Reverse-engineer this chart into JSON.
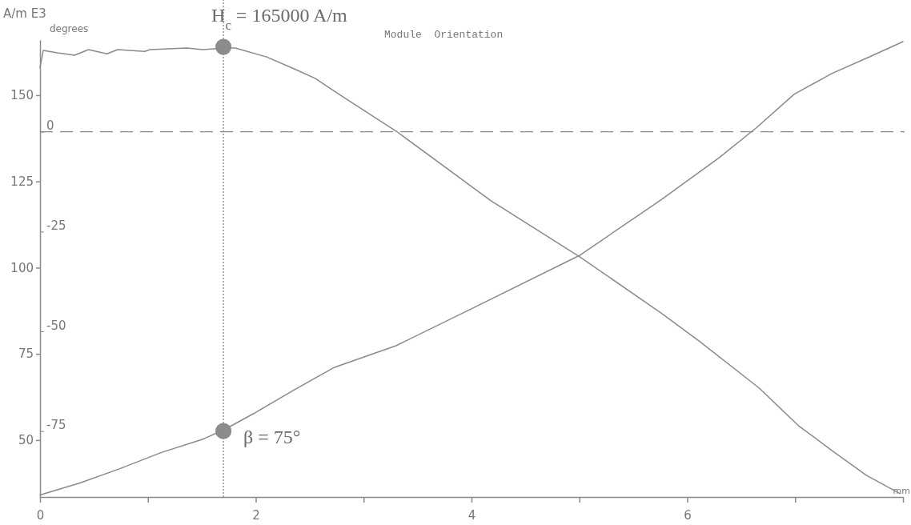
{
  "chart_data": {
    "type": "line",
    "title": "Module  Orientation",
    "ylabel": "A/m E3",
    "y2label": "degrees",
    "xlabel": "mm",
    "xlim": [
      0,
      8
    ],
    "xticks": [
      0,
      {
        "value": 1,
        "label": null
      },
      2,
      {
        "value": 3,
        "label": null
      },
      4,
      {
        "value": 5,
        "label": null
      },
      6,
      {
        "value": 7,
        "label": null
      },
      {
        "value": 8,
        "label": null
      }
    ],
    "ylim": [
      33.5,
      166
    ],
    "yticks": [
      50,
      75,
      100,
      125,
      150
    ],
    "y2lim": [
      -91.5,
      23
    ],
    "y2ticks": [
      0,
      -25,
      -50,
      -75
    ],
    "series": [
      {
        "color": "#8a8a8a",
        "x": [
          0,
          0.03,
          0.16,
          0.32,
          0.45,
          0.62,
          0.72,
          0.97,
          1.02,
          1.36,
          1.51,
          1.71,
          1.81,
          2.1,
          2.36,
          2.55,
          2.75,
          3.3,
          4.18,
          5.0,
          5.76,
          6.11,
          6.67,
          7.03,
          7.34,
          7.66,
          7.97
        ],
        "values": [
          158,
          163,
          162.3,
          161.6,
          163.2,
          162,
          163.2,
          162.7,
          163.2,
          163.7,
          163.2,
          163.7,
          163.7,
          161.1,
          157.6,
          154.9,
          150.7,
          139.6,
          119.4,
          103.2,
          86.8,
          78.7,
          65,
          54.2,
          47,
          39.8,
          34.5
        ]
      },
      {
        "axis": "y2",
        "color": "#8a8a8a",
        "x": [
          0,
          0.37,
          0.74,
          1.12,
          1.51,
          1.71,
          1.98,
          2.36,
          2.73,
          3.3,
          4.01,
          5.0,
          5.76,
          6.29,
          6.64,
          6.99,
          7.34,
          7.69,
          8.0
        ],
        "values": [
          -91,
          -88,
          -84.4,
          -80.4,
          -77,
          -74.6,
          -70.6,
          -64.6,
          -59,
          -53.6,
          -44.2,
          -31,
          -17,
          -6.6,
          1,
          9.4,
          14.6,
          18.8,
          22.6
        ]
      },
      {
        "type": "scatter",
        "marker": "circle",
        "color": "#8c8c8c",
        "x": [
          1.7
        ],
        "values": [
          164
        ]
      },
      {
        "type": "scatter",
        "marker": "circle",
        "axis": "y2",
        "color": "#8c8c8c",
        "x": [
          1.7
        ],
        "values": [
          -75
        ]
      }
    ],
    "ref_lines": [
      {
        "axis": "x",
        "value": 1.7,
        "line_style": "dotted",
        "color": "#8a8a8a"
      },
      {
        "axis": "y2",
        "value": 0,
        "line_style": "dashed",
        "color": "#8a8a8a"
      }
    ],
    "annotations": [
      {
        "text": "H$_{c}$ = 165000 A/m",
        "x": 1.7,
        "y": 164
      },
      "β = 75°"
    ]
  }
}
